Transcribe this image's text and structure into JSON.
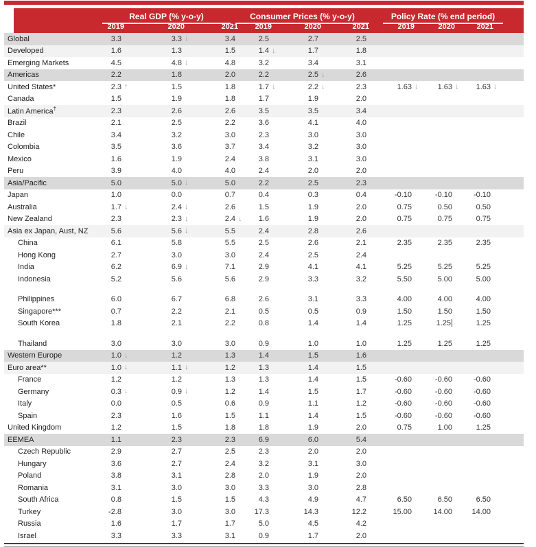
{
  "colors": {
    "header_red": "#C8292E",
    "row_shade_dark": "#D9D9D9",
    "row_shade_light": "#F2F2F2",
    "arrow_blue": "#8FA0B3",
    "bottom_rule_dark": "#404040",
    "bottom_rule_light": "#A3A3A3"
  },
  "header": {
    "groups": [
      {
        "title": "Real GDP (% y-o-y)",
        "years": [
          "2019",
          "2020",
          "2021"
        ]
      },
      {
        "title": "Consumer Prices (% y-o-y)",
        "years": [
          "2019",
          "2020",
          "2021"
        ]
      },
      {
        "title": "Policy Rate (% end period)",
        "years": [
          "2019",
          "2020",
          "2021"
        ]
      }
    ]
  },
  "table": {
    "rows": [
      {
        "label": "Global",
        "shade": "dark",
        "gdp": [
          "3.3",
          "3.3↓",
          "3.4"
        ],
        "cpi": [
          "2.5",
          "2.7",
          "2.5"
        ],
        "policy": [
          "",
          "",
          ""
        ]
      },
      {
        "label": "Developed",
        "shade": "light",
        "gdp": [
          "1.6",
          "1.3",
          "1.5"
        ],
        "cpi": [
          "1.4↓",
          "1.7",
          "1.8"
        ],
        "policy": [
          "",
          "",
          ""
        ]
      },
      {
        "label": "Emerging Markets",
        "gdp": [
          "4.5",
          "4.8↓",
          "4.8"
        ],
        "cpi": [
          "3.2",
          "3.4",
          "3.1"
        ],
        "policy": [
          "",
          "",
          ""
        ]
      },
      {
        "label": "Americas",
        "shade": "dark",
        "gdp": [
          "2.2",
          "1.8",
          "2.0"
        ],
        "cpi": [
          "2.2",
          "2.5↓",
          "2.6"
        ],
        "policy": [
          "",
          "",
          ""
        ]
      },
      {
        "label": "United States*",
        "gdp": [
          "2.3↑",
          "1.5",
          "1.8"
        ],
        "cpi": [
          "1.7↓",
          "2.2↓",
          "2.3"
        ],
        "policy": [
          "1.63↓",
          "1.63↓",
          "1.63↓"
        ]
      },
      {
        "label": "Canada",
        "gdp": [
          "1.5",
          "1.9",
          "1.8"
        ],
        "cpi": [
          "1.7",
          "1.9",
          "2.0"
        ],
        "policy": [
          "",
          "",
          ""
        ]
      },
      {
        "label": "Latin America",
        "sup": "†",
        "shade": "light",
        "gdp": [
          "2.3",
          "2.6",
          "2.6"
        ],
        "cpi": [
          "3.5",
          "3.5",
          "3.4"
        ],
        "policy": [
          "",
          "",
          ""
        ]
      },
      {
        "label": "Brazil",
        "gdp": [
          "2.1",
          "2.5",
          "2.2"
        ],
        "cpi": [
          "3.6",
          "4.1",
          "4.0"
        ],
        "policy": [
          "",
          "",
          ""
        ]
      },
      {
        "label": "Chile",
        "gdp": [
          "3.4",
          "3.2",
          "3.0"
        ],
        "cpi": [
          "2.3",
          "3.0",
          "3.0"
        ],
        "policy": [
          "",
          "",
          ""
        ]
      },
      {
        "label": "Colombia",
        "gdp": [
          "3.5",
          "3.6",
          "3.7"
        ],
        "cpi": [
          "3.4",
          "3.2",
          "3.0"
        ],
        "policy": [
          "",
          "",
          ""
        ]
      },
      {
        "label": "Mexico",
        "gdp": [
          "1.6",
          "1.9",
          "2.4"
        ],
        "cpi": [
          "3.8",
          "3.1",
          "3.0"
        ],
        "policy": [
          "",
          "",
          ""
        ]
      },
      {
        "label": "Peru",
        "gdp": [
          "3.9",
          "4.0",
          "4.0"
        ],
        "cpi": [
          "2.4",
          "2.0",
          "2.0"
        ],
        "policy": [
          "",
          "",
          ""
        ]
      },
      {
        "label": "Asia/Pacific",
        "shade": "dark",
        "gdp": [
          "5.0",
          "5.0↓",
          "5.0"
        ],
        "cpi": [
          "2.2",
          "2.5",
          "2.3"
        ],
        "policy": [
          "",
          "",
          ""
        ]
      },
      {
        "label": "Japan",
        "gdp": [
          "1.0",
          "0.0",
          "0.7"
        ],
        "cpi": [
          "0.4",
          "0.3",
          "0.4"
        ],
        "policy": [
          "-0.10",
          "-0.10",
          "-0.10"
        ]
      },
      {
        "label": "Australia",
        "gdp": [
          "1.7↓",
          "2.4↓",
          "2.6"
        ],
        "cpi": [
          "1.5",
          "1.9",
          "2.0"
        ],
        "policy": [
          "0.75",
          "0.50",
          "0.50"
        ]
      },
      {
        "label": "New Zealand",
        "gdp": [
          "2.3",
          "2.3↓",
          "2.4↓"
        ],
        "cpi": [
          "1.6",
          "1.9",
          "2.0"
        ],
        "policy": [
          "0.75",
          "0.75",
          "0.75"
        ]
      },
      {
        "label": "Asia ex Japan, Aust, NZ",
        "shade": "light",
        "gdp": [
          "5.6",
          "5.6↓",
          "5.5"
        ],
        "cpi": [
          "2.4",
          "2.8",
          "2.6"
        ],
        "policy": [
          "",
          "",
          ""
        ]
      },
      {
        "label": "China",
        "indent": true,
        "gdp": [
          "6.1",
          "5.8",
          "5.5"
        ],
        "cpi": [
          "2.5",
          "2.6",
          "2.1"
        ],
        "policy": [
          "2.35",
          "2.35",
          "2.35"
        ]
      },
      {
        "label": "Hong Kong",
        "indent": true,
        "gdp": [
          "2.7",
          "3.0",
          "3.0"
        ],
        "cpi": [
          "2.4",
          "2.5",
          "2.4"
        ],
        "policy": [
          "",
          "",
          ""
        ]
      },
      {
        "label": "India",
        "indent": true,
        "gdp": [
          "6.2",
          "6.9↓",
          "7.1"
        ],
        "cpi": [
          "2.9",
          "4.1",
          "4.1"
        ],
        "policy": [
          "5.25",
          "5.25",
          "5.25"
        ]
      },
      {
        "label": "Indonesia",
        "indent": true,
        "gdp": [
          "5.2",
          "5.6",
          "5.6"
        ],
        "cpi": [
          "2.9",
          "3.3",
          "3.2"
        ],
        "policy": [
          "5.50",
          "5.00",
          "5.00"
        ]
      },
      {
        "blank": true
      },
      {
        "label": "Philippines",
        "indent": true,
        "gdp": [
          "6.0",
          "6.7",
          "6.8"
        ],
        "cpi": [
          "2.6",
          "3.1",
          "3.3"
        ],
        "policy": [
          "4.00",
          "4.00",
          "4.00"
        ]
      },
      {
        "label": "Singapore***",
        "indent": true,
        "gdp": [
          "0.7",
          "2.2",
          "2.1"
        ],
        "cpi": [
          "0.5",
          "0.5",
          "0.9"
        ],
        "policy": [
          "1.50",
          "1.50",
          "1.50"
        ]
      },
      {
        "label": "South Korea",
        "indent": true,
        "gdp": [
          "1.8",
          "2.1",
          "2.2"
        ],
        "cpi": [
          "0.8",
          "1.4",
          "1.4"
        ],
        "policy": [
          "1.25",
          "1.25|",
          "1.25"
        ]
      },
      {
        "blank": true
      },
      {
        "label": "Thailand",
        "indent": true,
        "gdp": [
          "3.0",
          "3.0",
          "3.0"
        ],
        "cpi": [
          "0.9",
          "1.0",
          "1.0"
        ],
        "policy": [
          "1.25",
          "1.25",
          "1.25"
        ]
      },
      {
        "label": "Western Europe",
        "shade": "dark",
        "gdp": [
          "1.0↓",
          "1.2",
          "1.3"
        ],
        "cpi": [
          "1.4",
          "1.5",
          "1.6"
        ],
        "policy": [
          "",
          "",
          ""
        ]
      },
      {
        "label": "Euro area**",
        "shade": "light",
        "gdp": [
          "1.0↓",
          "1.1↓",
          "1.2"
        ],
        "cpi": [
          "1.3",
          "1.4",
          "1.5"
        ],
        "policy": [
          "",
          "",
          ""
        ]
      },
      {
        "label": "France",
        "indent": true,
        "gdp": [
          "1.2",
          "1.2",
          "1.3"
        ],
        "cpi": [
          "1.3",
          "1.4",
          "1.5"
        ],
        "policy": [
          "-0.60",
          "-0.60",
          "-0.60"
        ]
      },
      {
        "label": "Germany",
        "indent": true,
        "gdp": [
          "0.3↓",
          "0.9↓",
          "1.2"
        ],
        "cpi": [
          "1.4",
          "1.5",
          "1.7"
        ],
        "policy": [
          "-0.60",
          "-0.60",
          "-0.60"
        ]
      },
      {
        "label": "Italy",
        "indent": true,
        "gdp": [
          "0.0",
          "0.5",
          "0.6"
        ],
        "cpi": [
          "0.9",
          "1.1",
          "1.2"
        ],
        "policy": [
          "-0.60",
          "-0.60",
          "-0.60"
        ]
      },
      {
        "label": "Spain",
        "indent": true,
        "gdp": [
          "2.3",
          "1.6",
          "1.5"
        ],
        "cpi": [
          "1.1",
          "1.4",
          "1.5"
        ],
        "policy": [
          "-0.60",
          "-0.60",
          "-0.60"
        ]
      },
      {
        "label": "United Kingdom",
        "gdp": [
          "1.2",
          "1.5",
          "1.8"
        ],
        "cpi": [
          "1.8",
          "1.9",
          "2.0"
        ],
        "policy": [
          "0.75",
          "1.00",
          "1.25"
        ]
      },
      {
        "label": "EEMEA",
        "shade": "dark",
        "gdp": [
          "1.1",
          "2.3",
          "2.3"
        ],
        "cpi": [
          "6.9",
          "6.0",
          "5.4"
        ],
        "policy": [
          "",
          "",
          ""
        ]
      },
      {
        "label": "Czech Republic",
        "indent": true,
        "gdp": [
          "2.9",
          "2.7",
          "2.5"
        ],
        "cpi": [
          "2.3",
          "2.0",
          "2.0"
        ],
        "policy": [
          "",
          "",
          ""
        ]
      },
      {
        "label": "Hungary",
        "indent": true,
        "gdp": [
          "3.6",
          "2.7",
          "2.4"
        ],
        "cpi": [
          "3.2",
          "3.1",
          "3.0"
        ],
        "policy": [
          "",
          "",
          ""
        ]
      },
      {
        "label": "Poland",
        "indent": true,
        "gdp": [
          "3.8",
          "3.1",
          "2.8"
        ],
        "cpi": [
          "2.0",
          "1.9",
          "2.0"
        ],
        "policy": [
          "",
          "",
          ""
        ]
      },
      {
        "label": "Romania",
        "indent": true,
        "gdp": [
          "3.1",
          "3.0",
          "3.0"
        ],
        "cpi": [
          "3.3",
          "3.0",
          "2.8"
        ],
        "policy": [
          "",
          "",
          ""
        ]
      },
      {
        "label": "South Africa",
        "indent": true,
        "gdp": [
          "0.8",
          "1.5",
          "1.5"
        ],
        "cpi": [
          "4.3",
          "4.9",
          "4.7"
        ],
        "policy": [
          "6.50",
          "6.50",
          "6.50"
        ]
      },
      {
        "label": "Turkey",
        "indent": true,
        "gdp": [
          "-2.8",
          "3.0",
          "3.0"
        ],
        "cpi": [
          "17.3",
          "14.3",
          "12.2"
        ],
        "policy": [
          "15.00",
          "14.00",
          "14.00"
        ]
      },
      {
        "label": "Russia",
        "indent": true,
        "gdp": [
          "1.6",
          "1.7",
          "1.7"
        ],
        "cpi": [
          "5.0",
          "4.5",
          "4.2"
        ],
        "policy": [
          "",
          "",
          ""
        ]
      },
      {
        "label": "Israel",
        "indent": true,
        "gdp": [
          "3.3",
          "3.3",
          "3.1"
        ],
        "cpi": [
          "0.9",
          "1.7",
          "2.0"
        ],
        "policy": [
          "",
          "",
          ""
        ]
      }
    ]
  }
}
